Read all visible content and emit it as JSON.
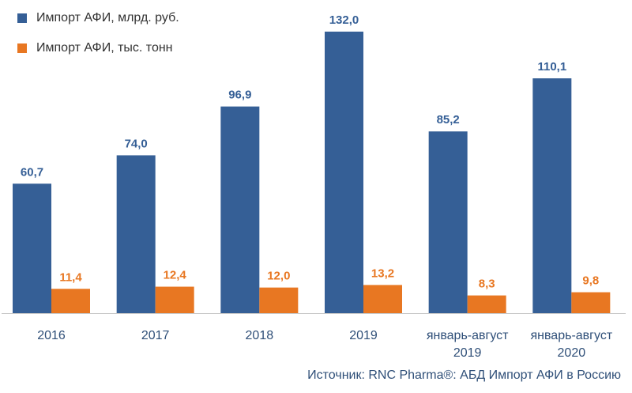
{
  "chart_data": {
    "type": "bar",
    "categories": [
      [
        "2016"
      ],
      [
        "2017"
      ],
      [
        "2018"
      ],
      [
        "2019"
      ],
      [
        "январь-август",
        "2019"
      ],
      [
        "январь-август",
        "2020"
      ]
    ],
    "series": [
      {
        "name": "Импорт АФИ, млрд. руб.",
        "color": "#355f96",
        "values": [
          60.7,
          74.0,
          96.9,
          132.0,
          85.2,
          110.1
        ],
        "labels": [
          "60,7",
          "74,0",
          "96,9",
          "132,0",
          "85,2",
          "110,1"
        ]
      },
      {
        "name": "Импорт АФИ, тыс. тонн",
        "color": "#e87722",
        "values": [
          11.4,
          12.4,
          12.0,
          13.2,
          8.3,
          9.8
        ],
        "labels": [
          "11,4",
          "12,4",
          "12,0",
          "13,2",
          "8,3",
          "9,8"
        ]
      }
    ],
    "ylim": [
      0,
      132
    ],
    "legend_position": "top-left",
    "grid": false
  },
  "source": "Источник: RNC Pharma®: АБД Импорт АФИ в Россию"
}
